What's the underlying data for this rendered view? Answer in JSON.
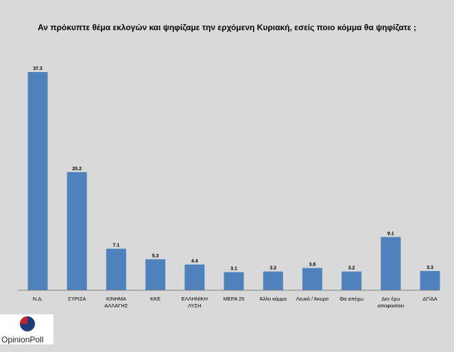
{
  "chart_data": {
    "type": "bar",
    "title": "Αν πρόκυπτε θέμα εκλογών και ψηφίζαμε την ερχόμενη Κυριακή, εσείς ποιο κόμμα θα ψηφίζατε ;",
    "categories": [
      [
        "Ν.Δ."
      ],
      [
        "ΣΥΡΙΖΑ"
      ],
      [
        "ΚΙΝΗΜΑ",
        "ΑΛΛΑΓΗΣ"
      ],
      [
        "ΚΚΕ"
      ],
      [
        "ΕΛΛΗΝΙΚΗ",
        "ΛΥΣΗ"
      ],
      [
        "ΜΕΡΑ 25"
      ],
      [
        "Άλλο κόμμα"
      ],
      [
        "Λευκό / Άκυρο"
      ],
      [
        "Θα απέχω"
      ],
      [
        "Δεν έχω",
        "αποφασίσει"
      ],
      [
        "ΔΓ/ΔΑ"
      ]
    ],
    "values": [
      37.3,
      20.2,
      7.1,
      5.3,
      4.4,
      3.1,
      3.2,
      3.8,
      3.2,
      9.1,
      3.3
    ],
    "value_labels": [
      "37.3",
      "20.2",
      "7.1",
      "5.3",
      "4.4",
      "3.1",
      "3.2",
      "3.8",
      "3.2",
      "9.1",
      "3.3"
    ],
    "color": "#4f81bd",
    "ylim": [
      0,
      37.3
    ],
    "grid": false,
    "legend": "none"
  },
  "logo": {
    "text": "OpinionPoll",
    "colors": [
      "#c0272d",
      "#1f3a78"
    ]
  }
}
